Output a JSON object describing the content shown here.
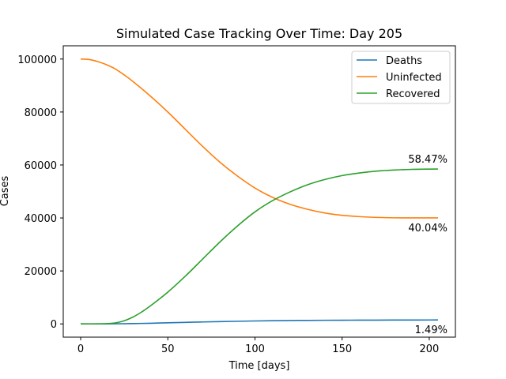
{
  "chart_data": {
    "type": "line",
    "title": "Simulated Case Tracking Over Time: Day 205",
    "xlabel": "Time [days]",
    "ylabel": "Cases",
    "xlim": [
      -10,
      215
    ],
    "ylim": [
      -5000,
      105000
    ],
    "xticks": [
      0,
      50,
      100,
      150,
      200
    ],
    "yticks": [
      0,
      20000,
      40000,
      60000,
      80000,
      100000
    ],
    "grid": false,
    "legend_position": "top-right",
    "series": [
      {
        "name": "Deaths",
        "color": "#1f77b4",
        "x": [
          0,
          10,
          20,
          30,
          40,
          50,
          60,
          70,
          80,
          90,
          100,
          110,
          120,
          130,
          140,
          150,
          160,
          170,
          180,
          190,
          200,
          205
        ],
        "y": [
          0,
          0,
          30,
          120,
          250,
          420,
          580,
          740,
          880,
          1000,
          1110,
          1200,
          1270,
          1330,
          1370,
          1400,
          1420,
          1440,
          1460,
          1475,
          1485,
          1490
        ]
      },
      {
        "name": "Uninfected",
        "color": "#ff7f0e",
        "x": [
          0,
          5,
          10,
          15,
          20,
          25,
          30,
          40,
          50,
          60,
          70,
          80,
          90,
          100,
          110,
          120,
          130,
          140,
          150,
          160,
          170,
          180,
          190,
          200,
          205
        ],
        "y": [
          100000,
          99800,
          99000,
          97800,
          96200,
          94000,
          91500,
          86000,
          80000,
          73500,
          67000,
          61000,
          55800,
          51300,
          47800,
          45200,
          43300,
          41900,
          41000,
          40500,
          40200,
          40050,
          40040,
          40040,
          40040
        ]
      },
      {
        "name": "Recovered",
        "color": "#2ca02c",
        "x": [
          0,
          10,
          15,
          20,
          25,
          30,
          35,
          40,
          50,
          60,
          70,
          80,
          90,
          100,
          110,
          120,
          130,
          140,
          150,
          160,
          170,
          180,
          190,
          200,
          205
        ],
        "y": [
          0,
          0,
          100,
          400,
          1200,
          2600,
          4500,
          6800,
          12000,
          18000,
          24500,
          31000,
          37000,
          42300,
          46500,
          49800,
          52500,
          54500,
          56000,
          57000,
          57700,
          58100,
          58350,
          58450,
          58470
        ]
      }
    ],
    "annotations": [
      {
        "text": "58.47%",
        "x": 205,
        "y": 58470,
        "placement": "above"
      },
      {
        "text": "40.04%",
        "x": 205,
        "y": 40040,
        "placement": "below"
      },
      {
        "text": "1.49%",
        "x": 205,
        "y": 1490,
        "placement": "below"
      }
    ]
  }
}
